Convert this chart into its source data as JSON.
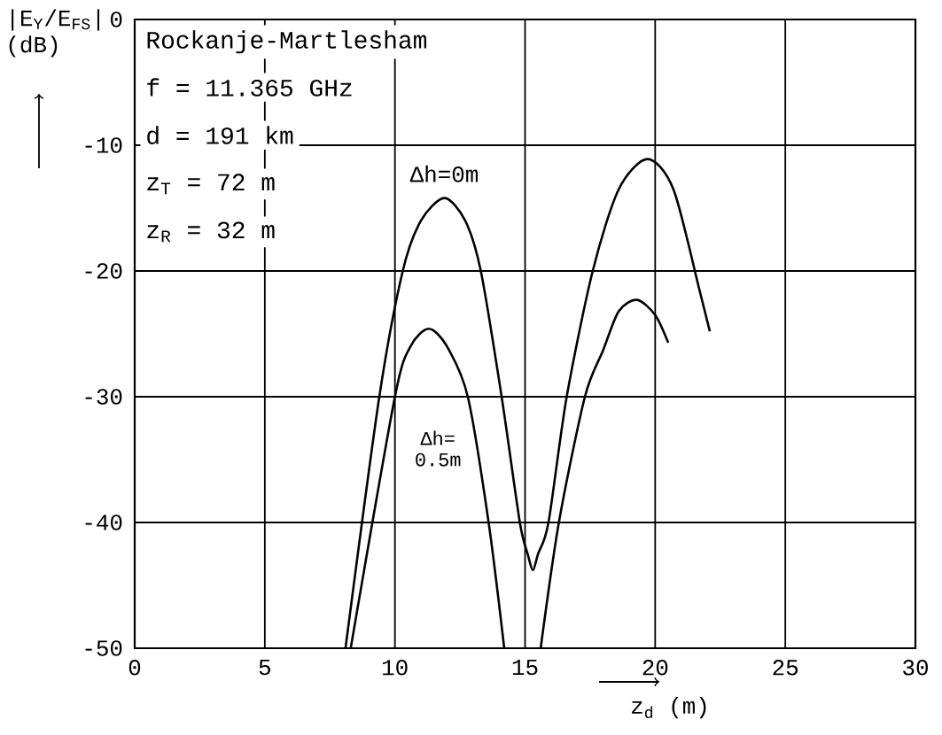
{
  "chart_data": {
    "type": "line",
    "xlabel": "z$_{d}$ (m)",
    "ylabel": "|E$_{Y}$/E$_{FS}$| (dB)",
    "annotations": [
      "Rockanje-Martlesham",
      "f = 11.365 GHz",
      "d = 191 km",
      "z$_{T}$ =  72 m",
      "z$_{R}$ =  32 m"
    ],
    "series": [
      {
        "name": "Δh=0m",
        "color": "#000000",
        "x": [
          8.1,
          9.4,
          10.3,
          11.0,
          11.9,
          12.7,
          13.3,
          14.1,
          14.8,
          15.1,
          15.3,
          15.5,
          15.9,
          16.6,
          17.6,
          18.6,
          19.7,
          20.7,
          21.7,
          22.1
        ],
        "values": [
          -50,
          -30,
          -20,
          -16,
          -14.2,
          -16,
          -20,
          -30,
          -40,
          -42.5,
          -43.8,
          -42.5,
          -40,
          -30,
          -20,
          -13.5,
          -11.1,
          -13.5,
          -21.5,
          -24.8
        ]
      },
      {
        "name": "Δh= 0.5m",
        "color": "#000000",
        "x": [
          8.3,
          10.0,
          10.6,
          11.3,
          12.0,
          12.8,
          13.6,
          14.2,
          15.0,
          15.6,
          16.3,
          17.3,
          18.0,
          18.6,
          19.3,
          20.0,
          20.5
        ],
        "values": [
          -50,
          -30,
          -26,
          -24.6,
          -26,
          -30,
          -40,
          -50,
          null,
          -50,
          -40,
          -30,
          -26.3,
          -23.2,
          -22.3,
          -23.5,
          -25.7
        ]
      }
    ],
    "xlim": [
      0,
      30
    ],
    "ylim": [
      -50,
      0
    ],
    "xticks": [
      0,
      5,
      10,
      15,
      20,
      25,
      30
    ],
    "yticks": [
      0,
      -10,
      -20,
      -30,
      -40,
      -50
    ],
    "grid": true,
    "legend": false,
    "marker": "none",
    "line_style": "solid"
  }
}
